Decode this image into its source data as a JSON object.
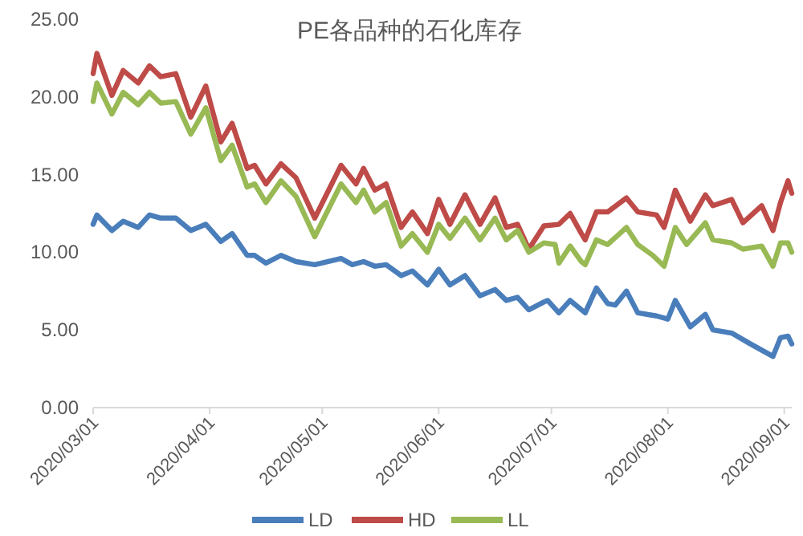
{
  "chart_data": {
    "type": "line",
    "title": "PE各品种的石化库存",
    "legend": "bottom",
    "line_style": "solid",
    "xlim": [
      "2020-03-01",
      "2020-09-03"
    ],
    "xticks": [
      {
        "value": "2020-03-01",
        "label": "2020/03/01"
      },
      {
        "value": "2020-04-01",
        "label": "2020/04/01"
      },
      {
        "value": "2020-05-01",
        "label": "2020/05/01"
      },
      {
        "value": "2020-06-01",
        "label": "2020/06/01"
      },
      {
        "value": "2020-07-01",
        "label": "2020/07/01"
      },
      {
        "value": "2020-08-01",
        "label": "2020/08/01"
      },
      {
        "value": "2020-09-01",
        "label": "2020/09/01"
      }
    ],
    "ylim": [
      0,
      25
    ],
    "yticks": [
      {
        "value": 0,
        "label": "0.00"
      },
      {
        "value": 5,
        "label": "5.00"
      },
      {
        "value": 10,
        "label": "10.00"
      },
      {
        "value": 15,
        "label": "15.00"
      },
      {
        "value": 20,
        "label": "20.00"
      },
      {
        "value": 25,
        "label": "25.00"
      }
    ],
    "series": [
      {
        "name": "LD",
        "color": "#4a7ebb",
        "x": [
          "2020-03-01",
          "2020-03-02",
          "2020-03-06",
          "2020-03-09",
          "2020-03-13",
          "2020-03-16",
          "2020-03-19",
          "2020-03-23",
          "2020-03-27",
          "2020-03-31",
          "2020-04-04",
          "2020-04-07",
          "2020-04-11",
          "2020-04-13",
          "2020-04-16",
          "2020-04-20",
          "2020-04-24",
          "2020-04-29",
          "2020-05-06",
          "2020-05-09",
          "2020-05-12",
          "2020-05-15",
          "2020-05-18",
          "2020-05-22",
          "2020-05-25",
          "2020-05-29",
          "2020-06-01",
          "2020-06-04",
          "2020-06-08",
          "2020-06-12",
          "2020-06-16",
          "2020-06-19",
          "2020-06-22",
          "2020-06-25",
          "2020-06-29",
          "2020-06-30",
          "2020-07-03",
          "2020-07-06",
          "2020-07-10",
          "2020-07-13",
          "2020-07-16",
          "2020-07-18",
          "2020-07-21",
          "2020-07-24",
          "2020-07-29",
          "2020-08-01",
          "2020-08-03",
          "2020-08-07",
          "2020-08-11",
          "2020-08-13",
          "2020-08-18",
          "2020-08-23",
          "2020-08-29",
          "2020-08-31",
          "2020-09-02",
          "2020-09-03"
        ],
        "values": [
          11.8,
          12.4,
          11.4,
          12.0,
          11.6,
          12.4,
          12.2,
          12.2,
          11.4,
          11.8,
          10.7,
          11.2,
          9.8,
          9.8,
          9.3,
          9.8,
          9.4,
          9.2,
          9.6,
          9.2,
          9.4,
          9.1,
          9.2,
          8.5,
          8.8,
          7.9,
          8.9,
          7.9,
          8.5,
          7.2,
          7.6,
          6.9,
          7.1,
          6.3,
          6.8,
          6.9,
          6.1,
          6.9,
          6.1,
          7.7,
          6.7,
          6.6,
          7.5,
          6.1,
          5.9,
          5.7,
          6.9,
          5.2,
          6.0,
          5.0,
          4.8,
          4.1,
          3.3,
          4.5,
          4.6,
          4.1
        ]
      },
      {
        "name": "HD",
        "color": "#be4b48",
        "x": [
          "2020-03-01",
          "2020-03-02",
          "2020-03-06",
          "2020-03-09",
          "2020-03-13",
          "2020-03-16",
          "2020-03-19",
          "2020-03-23",
          "2020-03-27",
          "2020-03-31",
          "2020-04-04",
          "2020-04-07",
          "2020-04-11",
          "2020-04-13",
          "2020-04-16",
          "2020-04-20",
          "2020-04-24",
          "2020-04-29",
          "2020-05-06",
          "2020-05-10",
          "2020-05-12",
          "2020-05-15",
          "2020-05-18",
          "2020-05-22",
          "2020-05-25",
          "2020-05-29",
          "2020-06-01",
          "2020-06-04",
          "2020-06-08",
          "2020-06-12",
          "2020-06-16",
          "2020-06-19",
          "2020-06-22",
          "2020-06-25",
          "2020-06-29",
          "2020-07-03",
          "2020-07-06",
          "2020-07-09",
          "2020-07-10",
          "2020-07-13",
          "2020-07-16",
          "2020-07-21",
          "2020-07-24",
          "2020-07-29",
          "2020-07-31",
          "2020-08-03",
          "2020-08-07",
          "2020-08-11",
          "2020-08-13",
          "2020-08-18",
          "2020-08-21",
          "2020-08-26",
          "2020-08-29",
          "2020-08-31",
          "2020-09-02",
          "2020-09-03"
        ],
        "values": [
          21.5,
          22.8,
          20.1,
          21.7,
          20.9,
          22.0,
          21.3,
          21.5,
          18.7,
          20.7,
          17.1,
          18.3,
          15.4,
          15.6,
          14.4,
          15.7,
          14.8,
          12.2,
          15.6,
          14.4,
          15.4,
          14.0,
          14.4,
          11.6,
          12.6,
          11.2,
          13.4,
          11.8,
          13.7,
          11.8,
          13.5,
          11.6,
          11.8,
          10.2,
          11.7,
          11.8,
          12.5,
          11.2,
          10.8,
          12.6,
          12.6,
          13.5,
          12.6,
          12.4,
          11.6,
          14.0,
          12.0,
          13.7,
          13.0,
          13.4,
          11.9,
          13.0,
          11.4,
          13.2,
          14.6,
          13.8
        ]
      },
      {
        "name": "LL",
        "color": "#98b954",
        "x": [
          "2020-03-01",
          "2020-03-02",
          "2020-03-06",
          "2020-03-09",
          "2020-03-13",
          "2020-03-16",
          "2020-03-19",
          "2020-03-23",
          "2020-03-27",
          "2020-03-31",
          "2020-04-04",
          "2020-04-07",
          "2020-04-11",
          "2020-04-13",
          "2020-04-16",
          "2020-04-20",
          "2020-04-24",
          "2020-04-29",
          "2020-05-06",
          "2020-05-10",
          "2020-05-12",
          "2020-05-15",
          "2020-05-18",
          "2020-05-22",
          "2020-05-25",
          "2020-05-29",
          "2020-06-01",
          "2020-06-04",
          "2020-06-08",
          "2020-06-12",
          "2020-06-16",
          "2020-06-19",
          "2020-06-22",
          "2020-06-25",
          "2020-06-29",
          "2020-07-02",
          "2020-07-03",
          "2020-07-06",
          "2020-07-09",
          "2020-07-10",
          "2020-07-13",
          "2020-07-16",
          "2020-07-21",
          "2020-07-24",
          "2020-07-28",
          "2020-07-31",
          "2020-08-03",
          "2020-08-06",
          "2020-08-11",
          "2020-08-13",
          "2020-08-18",
          "2020-08-21",
          "2020-08-26",
          "2020-08-29",
          "2020-08-31",
          "2020-09-02",
          "2020-09-03"
        ],
        "values": [
          19.7,
          20.9,
          18.9,
          20.3,
          19.5,
          20.3,
          19.6,
          19.7,
          17.6,
          19.3,
          15.9,
          16.9,
          14.2,
          14.4,
          13.2,
          14.6,
          13.6,
          11.0,
          14.4,
          13.2,
          14.0,
          12.6,
          13.2,
          10.4,
          11.2,
          10.0,
          11.8,
          10.9,
          12.2,
          10.8,
          12.2,
          10.8,
          11.4,
          10.0,
          10.6,
          10.5,
          9.3,
          10.4,
          9.4,
          9.2,
          10.8,
          10.5,
          11.6,
          10.5,
          9.8,
          9.1,
          11.6,
          10.5,
          11.9,
          10.8,
          10.6,
          10.2,
          10.4,
          9.1,
          10.6,
          10.6,
          10.0
        ]
      }
    ]
  }
}
